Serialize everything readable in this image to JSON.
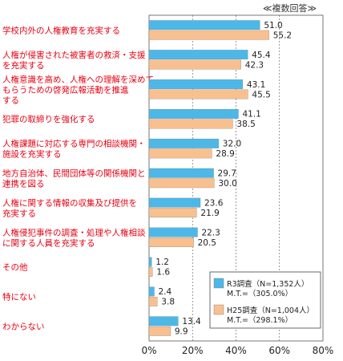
{
  "chart_data": {
    "type": "bar",
    "orientation": "horizontal",
    "note": "≪複数回答≫",
    "categories": [
      [
        "学校内外の人権教育を充実する"
      ],
      [
        "人権が侵害された被害者の救済・支援",
        "を充実する"
      ],
      [
        "人権意識を高め、人権への理解を深めて",
        "もらうための啓発広報活動を推進",
        "する"
      ],
      [
        "犯罪の取締りを強化する"
      ],
      [
        "人権課題に対応する専門の相談機関・",
        "施設を充実する"
      ],
      [
        "地方自治体、民間団体等の関係機関と",
        "連携を図る"
      ],
      [
        "人権に関する情報の収集及び提供を",
        "充実する"
      ],
      [
        "人権侵犯事件の調査・処理や人権相談",
        "に関する人員を充実する"
      ],
      [
        "その他"
      ],
      [
        "特にない"
      ],
      [
        "わからない"
      ]
    ],
    "series": [
      {
        "name_lines": [
          "R3調査（N=1,352人）",
          "M.T.=（305.0%）"
        ],
        "color": "#4db8e8",
        "values": [
          51.0,
          45.4,
          43.1,
          41.1,
          32.0,
          29.7,
          23.6,
          22.3,
          1.2,
          2.4,
          13.4
        ],
        "labels": [
          "51.0",
          "45.4",
          "43.1",
          "41.1",
          "32.0",
          "29.7",
          "23.6",
          "22.3",
          "1.2",
          "2.4",
          "13.4"
        ]
      },
      {
        "name_lines": [
          "H25調査（N=1,004人）",
          "M.T.=（298.1%）"
        ],
        "color": "#f9c08f",
        "values": [
          55.2,
          42.3,
          45.5,
          38.5,
          28.9,
          30.0,
          21.9,
          20.5,
          1.6,
          3.8,
          9.9
        ],
        "labels": [
          "55.2",
          "42.3",
          "45.5",
          "38.5",
          "28.9",
          "30.0",
          "21.9",
          "20.5",
          "1.6",
          "3.8",
          "9.9"
        ]
      }
    ],
    "xlim": [
      0,
      80
    ],
    "xticks": [
      0,
      20,
      40,
      60,
      80
    ],
    "xtick_labels": [
      "0%",
      "20%",
      "40%",
      "60%",
      "80%"
    ],
    "grid": true,
    "legend_position": "bottom-right"
  }
}
